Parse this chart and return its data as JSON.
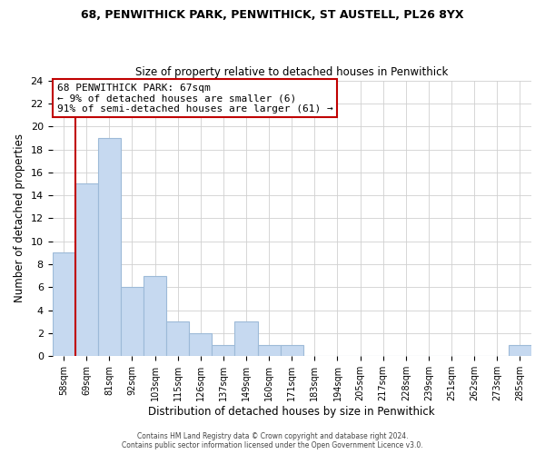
{
  "title1": "68, PENWITHICK PARK, PENWITHICK, ST AUSTELL, PL26 8YX",
  "title2": "Size of property relative to detached houses in Penwithick",
  "xlabel": "Distribution of detached houses by size in Penwithick",
  "ylabel": "Number of detached properties",
  "bins": [
    "58sqm",
    "69sqm",
    "81sqm",
    "92sqm",
    "103sqm",
    "115sqm",
    "126sqm",
    "137sqm",
    "149sqm",
    "160sqm",
    "171sqm",
    "183sqm",
    "194sqm",
    "205sqm",
    "217sqm",
    "228sqm",
    "239sqm",
    "251sqm",
    "262sqm",
    "273sqm",
    "285sqm"
  ],
  "counts": [
    9,
    15,
    19,
    6,
    7,
    3,
    2,
    1,
    3,
    1,
    1,
    0,
    0,
    0,
    0,
    0,
    0,
    0,
    0,
    0,
    1
  ],
  "bar_color": "#c6d9f0",
  "bar_edge_color": "#9dbad8",
  "annotation_title": "68 PENWITHICK PARK: 67sqm",
  "annotation_line1": "← 9% of detached houses are smaller (6)",
  "annotation_line2": "91% of semi-detached houses are larger (61) →",
  "annotation_box_edge": "#c00000",
  "vline_color": "#c00000",
  "ylim": [
    0,
    24
  ],
  "yticks": [
    0,
    2,
    4,
    6,
    8,
    10,
    12,
    14,
    16,
    18,
    20,
    22,
    24
  ],
  "footer1": "Contains HM Land Registry data © Crown copyright and database right 2024.",
  "footer2": "Contains public sector information licensed under the Open Government Licence v3.0."
}
